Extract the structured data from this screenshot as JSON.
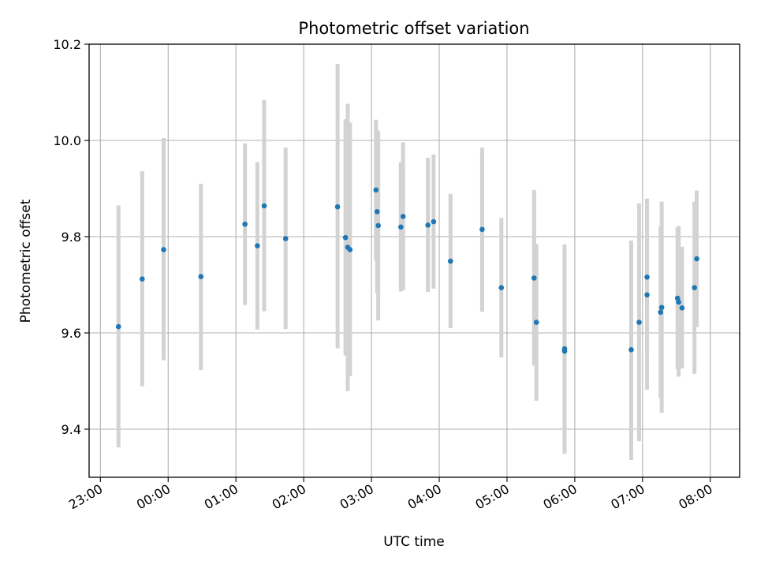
{
  "chart_data": {
    "type": "scatter",
    "title": "Photometric offset variation",
    "xlabel": "UTC time",
    "ylabel": "Photometric offset",
    "grid": true,
    "ylim": [
      9.3,
      10.2
    ],
    "xlim": [
      "22:50",
      "08:26"
    ],
    "x_ticks": [
      "23:00",
      "00:00",
      "01:00",
      "02:00",
      "03:00",
      "04:00",
      "05:00",
      "06:00",
      "07:00",
      "08:00"
    ],
    "y_ticks": [
      "9.4",
      "9.6",
      "9.8",
      "10.0",
      "10.2"
    ],
    "colors": {
      "point": "#1f77b4",
      "errorbar": "#d3d3d3",
      "grid": "#b0b0b0"
    },
    "series": [
      {
        "points": [
          {
            "x": "23:16",
            "y": 9.613,
            "low": 9.362,
            "high": 9.865
          },
          {
            "x": "23:37",
            "y": 9.712,
            "low": 9.489,
            "high": 9.936
          },
          {
            "x": "23:56",
            "y": 9.773,
            "low": 9.543,
            "high": 10.005
          },
          {
            "x": "00:29",
            "y": 9.717,
            "low": 9.523,
            "high": 9.91
          },
          {
            "x": "01:08",
            "y": 9.826,
            "low": 9.658,
            "high": 9.994
          },
          {
            "x": "01:19",
            "y": 9.781,
            "low": 9.607,
            "high": 9.955
          },
          {
            "x": "01:25",
            "y": 9.864,
            "low": 9.645,
            "high": 10.084
          },
          {
            "x": "01:44",
            "y": 9.796,
            "low": 9.608,
            "high": 9.985
          },
          {
            "x": "02:30",
            "y": 9.862,
            "low": 9.568,
            "high": 10.159
          },
          {
            "x": "02:37",
            "y": 9.798,
            "low": 9.553,
            "high": 10.044
          },
          {
            "x": "02:39",
            "y": 9.778,
            "low": 9.479,
            "high": 10.076
          },
          {
            "x": "02:41",
            "y": 9.773,
            "low": 9.51,
            "high": 10.037
          },
          {
            "x": "03:04",
            "y": 9.897,
            "low": 9.75,
            "high": 10.043
          },
          {
            "x": "03:05",
            "y": 9.852,
            "low": 9.683,
            "high": 10.022
          },
          {
            "x": "03:06",
            "y": 9.823,
            "low": 9.626,
            "high": 10.019
          },
          {
            "x": "03:26",
            "y": 9.82,
            "low": 9.686,
            "high": 9.955
          },
          {
            "x": "03:28",
            "y": 9.842,
            "low": 9.689,
            "high": 9.996
          },
          {
            "x": "03:50",
            "y": 9.824,
            "low": 9.685,
            "high": 9.964
          },
          {
            "x": "03:55",
            "y": 9.831,
            "low": 9.692,
            "high": 9.971
          },
          {
            "x": "04:10",
            "y": 9.749,
            "low": 9.61,
            "high": 9.889
          },
          {
            "x": "04:38",
            "y": 9.815,
            "low": 9.644,
            "high": 9.985
          },
          {
            "x": "04:55",
            "y": 9.694,
            "low": 9.549,
            "high": 9.839
          },
          {
            "x": "05:24",
            "y": 9.714,
            "low": 9.532,
            "high": 9.897
          },
          {
            "x": "05:26",
            "y": 9.622,
            "low": 9.459,
            "high": 9.785
          },
          {
            "x": "05:51",
            "y": 9.567,
            "low": 9.349,
            "high": 9.784
          },
          {
            "x": "05:51",
            "y": 9.562,
            "low": 9.349,
            "high": 9.776
          },
          {
            "x": "06:50",
            "y": 9.565,
            "low": 9.336,
            "high": 9.792
          },
          {
            "x": "06:57",
            "y": 9.622,
            "low": 9.375,
            "high": 9.869
          },
          {
            "x": "07:04",
            "y": 9.716,
            "low": 9.553,
            "high": 9.879
          },
          {
            "x": "07:04",
            "y": 9.679,
            "low": 9.482,
            "high": 9.876
          },
          {
            "x": "07:16",
            "y": 9.643,
            "low": 9.465,
            "high": 9.821
          },
          {
            "x": "07:17",
            "y": 9.653,
            "low": 9.434,
            "high": 9.873
          },
          {
            "x": "07:31",
            "y": 9.672,
            "low": 9.525,
            "high": 9.819
          },
          {
            "x": "07:32",
            "y": 9.664,
            "low": 9.509,
            "high": 9.822
          },
          {
            "x": "07:35",
            "y": 9.652,
            "low": 9.526,
            "high": 9.779
          },
          {
            "x": "07:46",
            "y": 9.694,
            "low": 9.515,
            "high": 9.873
          },
          {
            "x": "07:48",
            "y": 9.754,
            "low": 9.612,
            "high": 9.896
          }
        ]
      }
    ]
  }
}
